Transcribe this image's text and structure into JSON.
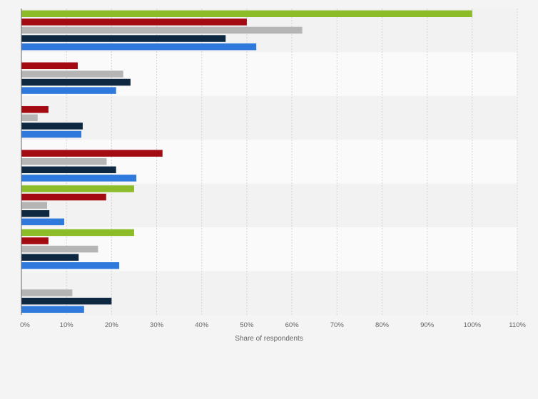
{
  "chart_data": {
    "type": "bar",
    "orientation": "horizontal",
    "title": "",
    "xlabel": "Share of respondents",
    "ylabel": "",
    "xlim": [
      0,
      110
    ],
    "x_ticks": [
      0,
      10,
      20,
      30,
      40,
      50,
      60,
      70,
      80,
      90,
      100,
      110
    ],
    "x_tick_labels": [
      "0%",
      "10%",
      "20%",
      "30%",
      "40%",
      "50%",
      "60%",
      "70%",
      "80%",
      "90%",
      "100%",
      "110%"
    ],
    "grid": true,
    "legend": "none",
    "groups": 7,
    "series": [
      {
        "color": "#8cbd29",
        "values": [
          100,
          null,
          null,
          null,
          25,
          25,
          null
        ]
      },
      {
        "color": "#a30a12",
        "values": [
          50,
          12.5,
          6,
          31.3,
          18.8,
          6,
          null
        ]
      },
      {
        "color": "#b5b5b5",
        "values": [
          62.3,
          22.6,
          3.6,
          18.9,
          5.7,
          17,
          11.3
        ]
      },
      {
        "color": "#0e2841",
        "values": [
          45.3,
          24.2,
          13.6,
          21,
          6.2,
          12.7,
          20
        ]
      },
      {
        "color": "#2f78dc",
        "values": [
          52.1,
          21,
          13.3,
          25.5,
          9.5,
          21.7,
          13.9
        ]
      }
    ]
  }
}
